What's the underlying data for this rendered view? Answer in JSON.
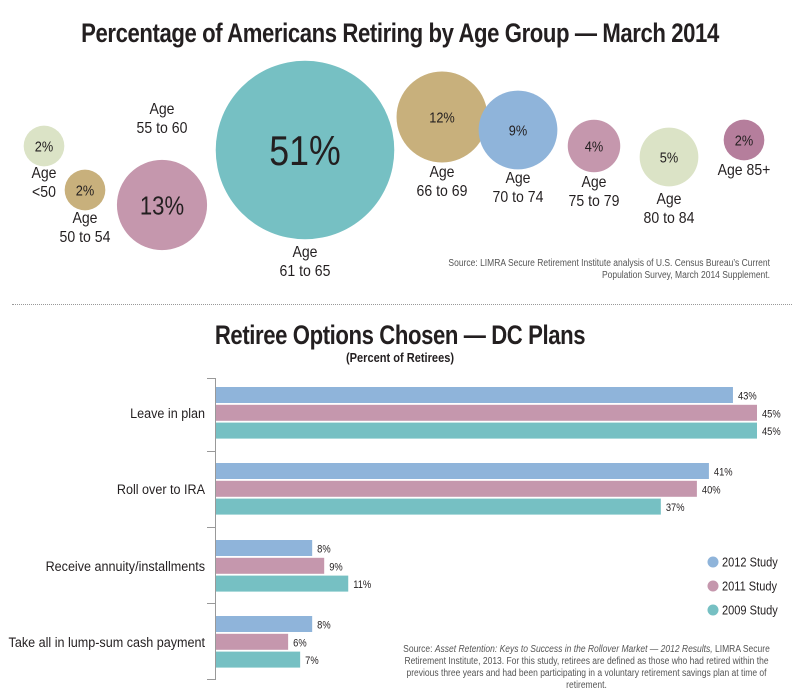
{
  "chart_data": [
    {
      "type": "bubble",
      "title": "Percentage of Americans Retiring by Age Group — March 2014",
      "categories": [
        "Age <50",
        "Age 50 to 54",
        "Age 55 to 60",
        "Age 61 to 65",
        "Age 66 to 69",
        "Age 70 to 74",
        "Age 75 to 79",
        "Age 80 to 84",
        "Age 85+"
      ],
      "values": [
        2,
        2,
        13,
        51,
        12,
        9,
        4,
        5,
        2
      ],
      "value_labels": [
        "2%",
        "2%",
        "13%",
        "51%",
        "12%",
        "9%",
        "4%",
        "5%",
        "2%"
      ],
      "label_lines": [
        [
          "Age",
          "<50"
        ],
        [
          "Age",
          "50 to 54"
        ],
        [
          "Age",
          "55 to 60"
        ],
        [
          "Age",
          "61 to 65"
        ],
        [
          "Age",
          "66 to 69"
        ],
        [
          "Age",
          "70 to 74"
        ],
        [
          "Age",
          "75 to 79"
        ],
        [
          "Age",
          "80 to 84"
        ],
        [
          "Age 85+"
        ]
      ],
      "colors": [
        "#dbe3c6",
        "#c8b07c",
        "#c597ad",
        "#76c0c3",
        "#c8b07c",
        "#8fb4da",
        "#c597ad",
        "#dbe3c6",
        "#b57e9c"
      ],
      "source": "Source: LIMRA Secure Retirement Institute analysis of U.S. Census Bureau’s Current Population Survey, March 2014 Supplement."
    },
    {
      "type": "bar",
      "orientation": "horizontal",
      "title": "Retiree Options Chosen — DC Plans",
      "subtitle": "(Percent of Retirees)",
      "categories": [
        "Leave in plan",
        "Roll over to IRA",
        "Receive annuity/installments",
        "Take all in lump-sum cash payment"
      ],
      "series": [
        {
          "name": "2012 Study",
          "color": "#8fb4da",
          "values": [
            43,
            41,
            8,
            8
          ]
        },
        {
          "name": "2011 Study",
          "color": "#c597ad",
          "values": [
            45,
            40,
            9,
            6
          ]
        },
        {
          "name": "2009 Study",
          "color": "#76c0c3",
          "values": [
            45,
            37,
            11,
            7
          ]
        }
      ],
      "value_suffix": "%",
      "xlim": [
        0,
        45
      ],
      "legend": "right",
      "source_prefix": "Source: ",
      "source_title": "Asset Retention: Keys to Success in the Rollover Market — 2012 Results,",
      "source_rest": " LIMRA Secure Retirement Institute, 2013. For this study, retirees are defined as those who had retired within the previous three years and had been participating in a voluntary retirement savings plan at time of retirement."
    }
  ]
}
